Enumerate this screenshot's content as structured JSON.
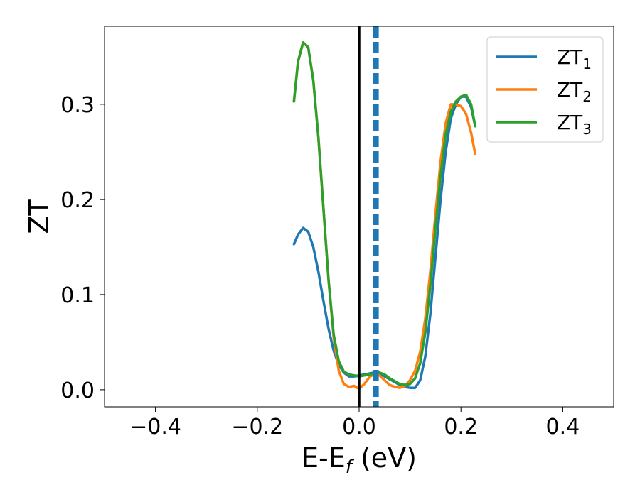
{
  "chart_data": {
    "type": "line",
    "xlabel": "E-E",
    "xlabel_subscript": "f",
    "xlabel_unit": " (eV)",
    "ylabel": "ZT",
    "xlim": [
      -0.5,
      0.5
    ],
    "ylim": [
      -0.018,
      0.382
    ],
    "xticks": [
      -0.4,
      -0.2,
      0.0,
      0.2,
      0.4
    ],
    "xtick_labels": [
      "−0.4",
      "−0.2",
      "0.0",
      "0.2",
      "0.4"
    ],
    "yticks": [
      0.0,
      0.1,
      0.2,
      0.3
    ],
    "ytick_labels": [
      "0.0",
      "0.1",
      "0.2",
      "0.3"
    ],
    "grid": false,
    "legend_position": "top-right",
    "vlines": [
      {
        "x": 0.0,
        "style": "solid",
        "color": "#000000"
      },
      {
        "x": 0.033,
        "style": "dashed",
        "color": "#1f77b4"
      }
    ],
    "series": [
      {
        "name": "ZT",
        "subscript": "1",
        "color": "#1f77b4",
        "x": [
          -0.128,
          -0.12,
          -0.11,
          -0.1,
          -0.09,
          -0.08,
          -0.07,
          -0.06,
          -0.05,
          -0.04,
          -0.03,
          -0.02,
          -0.01,
          0.0,
          0.01,
          0.02,
          0.03,
          0.04,
          0.05,
          0.06,
          0.07,
          0.08,
          0.09,
          0.1,
          0.11,
          0.12,
          0.13,
          0.14,
          0.15,
          0.16,
          0.17,
          0.18,
          0.19,
          0.2,
          0.21,
          0.22,
          0.228
        ],
        "y": [
          0.153,
          0.163,
          0.17,
          0.166,
          0.15,
          0.124,
          0.093,
          0.064,
          0.041,
          0.026,
          0.018,
          0.014,
          0.014,
          0.015,
          0.016,
          0.017,
          0.018,
          0.017,
          0.014,
          0.011,
          0.008,
          0.005,
          0.003,
          0.002,
          0.002,
          0.01,
          0.035,
          0.08,
          0.14,
          0.2,
          0.25,
          0.285,
          0.3,
          0.308,
          0.308,
          0.297,
          0.277
        ]
      },
      {
        "name": "ZT",
        "subscript": "2",
        "color": "#ff7f0e",
        "x": [
          -0.128,
          -0.12,
          -0.11,
          -0.1,
          -0.09,
          -0.08,
          -0.07,
          -0.06,
          -0.05,
          -0.04,
          -0.03,
          -0.02,
          -0.01,
          0.0,
          0.01,
          0.02,
          0.03,
          0.04,
          0.05,
          0.06,
          0.07,
          0.08,
          0.09,
          0.1,
          0.11,
          0.12,
          0.13,
          0.14,
          0.15,
          0.16,
          0.17,
          0.18,
          0.19,
          0.2,
          0.21,
          0.22,
          0.228
        ],
        "y": [
          0.303,
          0.345,
          0.365,
          0.36,
          0.325,
          0.265,
          0.19,
          0.115,
          0.055,
          0.02,
          0.006,
          0.003,
          0.004,
          0.001,
          0.006,
          0.013,
          0.017,
          0.015,
          0.01,
          0.005,
          0.003,
          0.002,
          0.004,
          0.01,
          0.02,
          0.04,
          0.075,
          0.125,
          0.185,
          0.24,
          0.28,
          0.3,
          0.3,
          0.298,
          0.29,
          0.27,
          0.248
        ]
      },
      {
        "name": "ZT",
        "subscript": "3",
        "color": "#2ca02c",
        "x": [
          -0.128,
          -0.12,
          -0.11,
          -0.1,
          -0.09,
          -0.08,
          -0.07,
          -0.06,
          -0.05,
          -0.04,
          -0.03,
          -0.02,
          -0.01,
          0.0,
          0.01,
          0.02,
          0.03,
          0.04,
          0.05,
          0.06,
          0.07,
          0.08,
          0.09,
          0.1,
          0.11,
          0.12,
          0.13,
          0.14,
          0.15,
          0.16,
          0.17,
          0.18,
          0.19,
          0.2,
          0.21,
          0.22,
          0.228
        ],
        "y": [
          0.303,
          0.345,
          0.365,
          0.36,
          0.325,
          0.265,
          0.19,
          0.115,
          0.058,
          0.03,
          0.019,
          0.016,
          0.015,
          0.014,
          0.015,
          0.016,
          0.017,
          0.018,
          0.016,
          0.012,
          0.009,
          0.006,
          0.005,
          0.006,
          0.012,
          0.028,
          0.06,
          0.11,
          0.17,
          0.225,
          0.268,
          0.292,
          0.303,
          0.308,
          0.31,
          0.3,
          0.277
        ]
      }
    ]
  }
}
